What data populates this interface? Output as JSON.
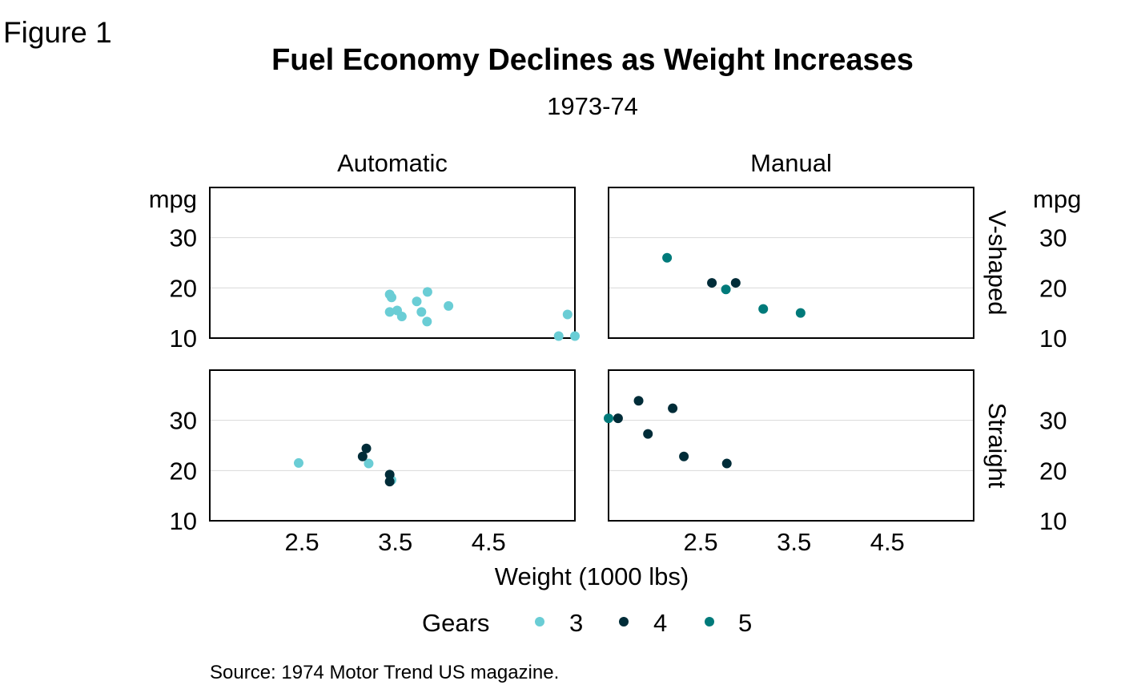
{
  "figure_label": "Figure 1",
  "chart_data": {
    "type": "scatter",
    "title": "Fuel Economy Declines as Weight Increases",
    "subtitle": "1973-74",
    "xlabel": "Weight (1000 lbs)",
    "ylabel": "mpg",
    "xlim": [
      1.513,
      5.424
    ],
    "ylim": [
      10,
      40
    ],
    "xticks": [
      "2.5",
      "3.5",
      "4.5"
    ],
    "yticks": [
      "10",
      "20",
      "30"
    ],
    "grid": true,
    "facet_columns": [
      "Automatic",
      "Manual"
    ],
    "facet_rows": [
      "V-shaped",
      "Straight"
    ],
    "legend": {
      "title": "Gears",
      "placement": "bottom",
      "entries": [
        {
          "label": "3",
          "color": "#6acdd5"
        },
        {
          "label": "4",
          "color": "#002c38"
        },
        {
          "label": "5",
          "color": "#007a7a"
        }
      ]
    },
    "source": "Source: 1974 Motor Trend US magazine.",
    "panels": [
      {
        "column": "Automatic",
        "row": "V-shaped",
        "points": [
          {
            "x": 3.44,
            "y": 18.7,
            "gear": 3
          },
          {
            "x": 3.46,
            "y": 18.1,
            "gear": 3
          },
          {
            "x": 3.57,
            "y": 14.3,
            "gear": 3
          },
          {
            "x": 3.44,
            "y": 15.2,
            "gear": 3
          },
          {
            "x": 3.52,
            "y": 15.5,
            "gear": 3
          },
          {
            "x": 3.73,
            "y": 17.3,
            "gear": 3
          },
          {
            "x": 3.78,
            "y": 15.2,
            "gear": 3
          },
          {
            "x": 4.07,
            "y": 16.4,
            "gear": 3
          },
          {
            "x": 5.25,
            "y": 10.4,
            "gear": 3
          },
          {
            "x": 5.424,
            "y": 10.4,
            "gear": 3
          },
          {
            "x": 5.345,
            "y": 14.7,
            "gear": 3
          },
          {
            "x": 3.84,
            "y": 13.3,
            "gear": 3
          },
          {
            "x": 3.845,
            "y": 19.2,
            "gear": 3
          }
        ]
      },
      {
        "column": "Manual",
        "row": "V-shaped",
        "points": [
          {
            "x": 2.62,
            "y": 21.0,
            "gear": 4
          },
          {
            "x": 2.875,
            "y": 21.0,
            "gear": 4
          },
          {
            "x": 2.14,
            "y": 26.0,
            "gear": 5
          },
          {
            "x": 3.17,
            "y": 15.8,
            "gear": 5
          },
          {
            "x": 2.77,
            "y": 19.7,
            "gear": 5
          },
          {
            "x": 3.57,
            "y": 15.0,
            "gear": 5
          }
        ]
      },
      {
        "column": "Automatic",
        "row": "Straight",
        "points": [
          {
            "x": 3.215,
            "y": 21.4,
            "gear": 3
          },
          {
            "x": 3.46,
            "y": 18.1,
            "gear": 3
          },
          {
            "x": 2.465,
            "y": 21.5,
            "gear": 3
          },
          {
            "x": 3.19,
            "y": 24.4,
            "gear": 4
          },
          {
            "x": 3.15,
            "y": 22.8,
            "gear": 4
          },
          {
            "x": 3.44,
            "y": 19.2,
            "gear": 4
          },
          {
            "x": 3.44,
            "y": 17.8,
            "gear": 4
          }
        ]
      },
      {
        "column": "Manual",
        "row": "Straight",
        "points": [
          {
            "x": 2.32,
            "y": 22.8,
            "gear": 4
          },
          {
            "x": 2.2,
            "y": 32.4,
            "gear": 4
          },
          {
            "x": 1.615,
            "y": 30.4,
            "gear": 4
          },
          {
            "x": 1.835,
            "y": 33.9,
            "gear": 4
          },
          {
            "x": 1.935,
            "y": 27.3,
            "gear": 4
          },
          {
            "x": 2.78,
            "y": 21.4,
            "gear": 4
          },
          {
            "x": 1.513,
            "y": 30.4,
            "gear": 5
          }
        ]
      }
    ]
  }
}
